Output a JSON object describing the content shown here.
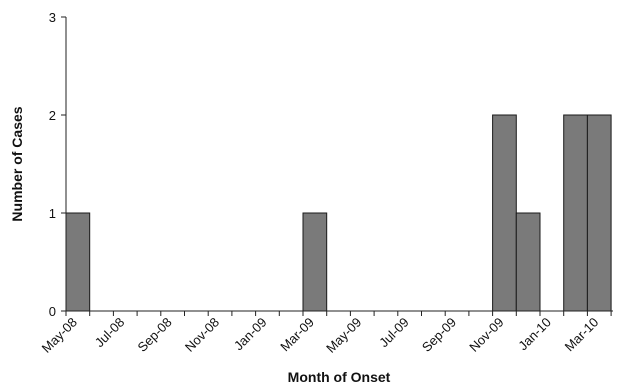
{
  "chart_data": {
    "type": "bar",
    "title": "",
    "xlabel": "Month of Onset",
    "ylabel": "Number of Cases",
    "ylim": [
      0,
      3
    ],
    "y_ticks": [
      "0",
      "1",
      "2",
      "3"
    ],
    "x_tick_labels": [
      "May-08",
      "Jul-08",
      "Sep-08",
      "Nov-08",
      "Jan-09",
      "Mar-09",
      "May-09",
      "Jul-09",
      "Sep-09",
      "Nov-09",
      "Jan-10",
      "Mar-10"
    ],
    "categories": [
      "May-08",
      "Jun-08",
      "Jul-08",
      "Aug-08",
      "Sep-08",
      "Oct-08",
      "Nov-08",
      "Dec-08",
      "Jan-09",
      "Feb-09",
      "Mar-09",
      "Apr-09",
      "May-09",
      "Jun-09",
      "Jul-09",
      "Aug-09",
      "Sep-09",
      "Oct-09",
      "Nov-09",
      "Dec-09",
      "Jan-10",
      "Feb-10",
      "Mar-10"
    ],
    "values": [
      1,
      0,
      0,
      0,
      0,
      0,
      0,
      0,
      0,
      0,
      1,
      0,
      0,
      0,
      0,
      0,
      0,
      0,
      2,
      1,
      0,
      2,
      2
    ],
    "grid": false,
    "legend": "none",
    "bar_color": "#7a7a7a",
    "bar_edge_color": "#1a1a1a"
  }
}
